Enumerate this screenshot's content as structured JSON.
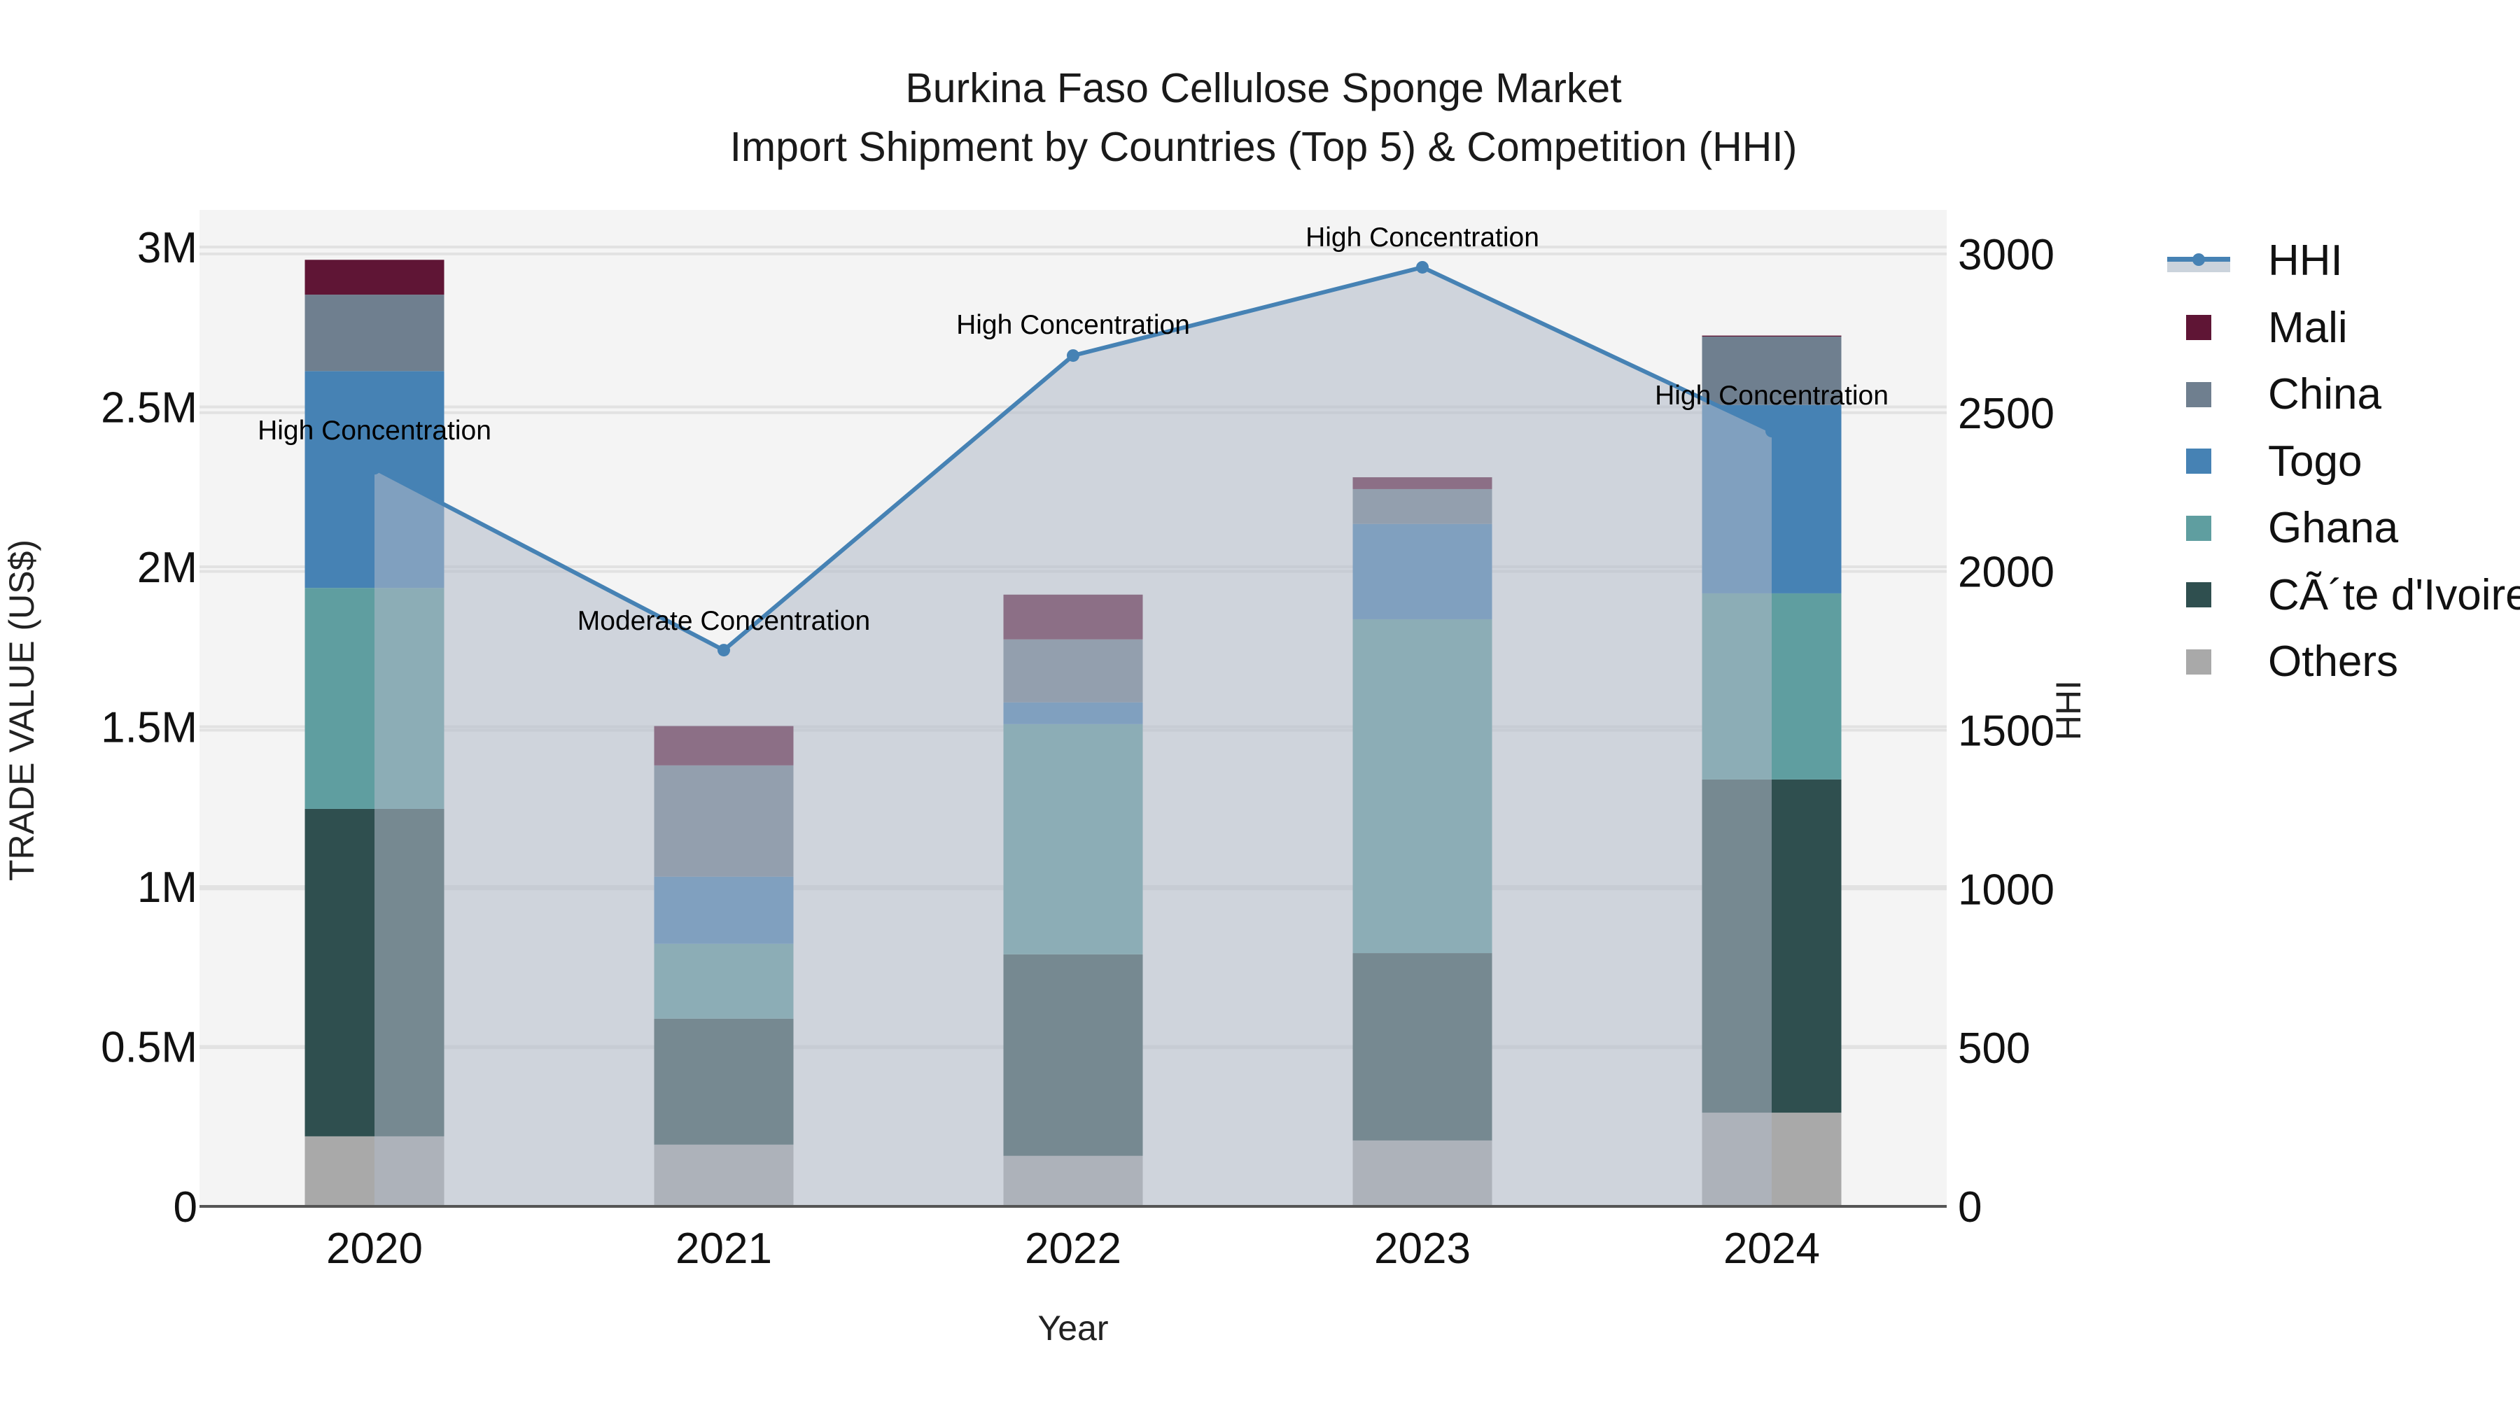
{
  "title": {
    "line1": "Burkina Faso Cellulose Sponge Market",
    "line2": "Import Shipment by Countries (Top 5) & Competition (HHI)"
  },
  "axes": {
    "x_title": "Year",
    "y_left_title": "TRADE VALUE (US$)",
    "y_right_title": "HHI",
    "x_ticks": [
      "2020",
      "2021",
      "2022",
      "2023",
      "2024"
    ],
    "y_left_ticks": [
      "0",
      "0.5M",
      "1M",
      "1.5M",
      "2M",
      "2.5M",
      "3M"
    ],
    "y_right_ticks": [
      "0",
      "500",
      "1000",
      "1500",
      "2000",
      "2500",
      "3000"
    ]
  },
  "legend": {
    "items": [
      {
        "label": "HHI",
        "type": "line",
        "color": "#4682b4"
      },
      {
        "label": "Mali",
        "type": "box",
        "color": "#5f1535"
      },
      {
        "label": "China",
        "type": "box",
        "color": "#6f7f8f"
      },
      {
        "label": "Togo",
        "type": "box",
        "color": "#4682b4"
      },
      {
        "label": "Ghana",
        "type": "box",
        "color": "#5f9ea0"
      },
      {
        "label": "CÃ´te d'Ivoire",
        "type": "box",
        "color": "#2f4f4f"
      },
      {
        "label": "Others",
        "type": "box",
        "color": "#a9a9a9"
      }
    ]
  },
  "annotations": [
    {
      "year": "2020",
      "text": "High Concentration"
    },
    {
      "year": "2021",
      "text": "Moderate Concentration"
    },
    {
      "year": "2022",
      "text": "High Concentration"
    },
    {
      "year": "2023",
      "text": "High Concentration"
    },
    {
      "year": "2024",
      "text": "High Concentration"
    }
  ],
  "chart_data": {
    "type": "bar",
    "subtype": "stacked bar with line overlay (secondary axis)",
    "title": "Burkina Faso Cellulose Sponge Market — Import Shipment by Countries (Top 5) & Competition (HHI)",
    "xlabel": "Year",
    "ylabel": "TRADE VALUE (US$)",
    "y2label": "HHI",
    "categories": [
      "2020",
      "2021",
      "2022",
      "2023",
      "2024"
    ],
    "ylim": [
      0,
      3100000
    ],
    "y2lim": [
      0,
      3130
    ],
    "grid": true,
    "legend_position": "right",
    "series": [
      {
        "name": "Others",
        "color": "#a9a9a9",
        "values": [
          219000,
          193000,
          158000,
          206000,
          293000
        ]
      },
      {
        "name": "CÃ´te d'Ivoire",
        "color": "#2f4f4f",
        "values": [
          1024000,
          394000,
          630000,
          586000,
          1042000
        ]
      },
      {
        "name": "Ghana",
        "color": "#5f9ea0",
        "values": [
          691000,
          234000,
          720000,
          1044000,
          582000
        ]
      },
      {
        "name": "Togo",
        "color": "#4682b4",
        "values": [
          678000,
          210000,
          68000,
          298000,
          589000
        ]
      },
      {
        "name": "China",
        "color": "#6f7f8f",
        "values": [
          239000,
          348000,
          197000,
          109000,
          214000
        ]
      },
      {
        "name": "Mali",
        "color": "#5f1535",
        "values": [
          109000,
          123000,
          140000,
          37000,
          3000
        ]
      }
    ],
    "totals": [
      2960000,
      1502000,
      1913000,
      2280000,
      2723000
    ],
    "line_series": {
      "name": "HHI",
      "axis": "right",
      "color": "#4682b4",
      "fill": "tozeroy",
      "values": [
        2325,
        1752,
        2680,
        2958,
        2442
      ],
      "labels": [
        "High Concentration",
        "Moderate Concentration",
        "High Concentration",
        "High Concentration",
        "High Concentration"
      ]
    }
  }
}
